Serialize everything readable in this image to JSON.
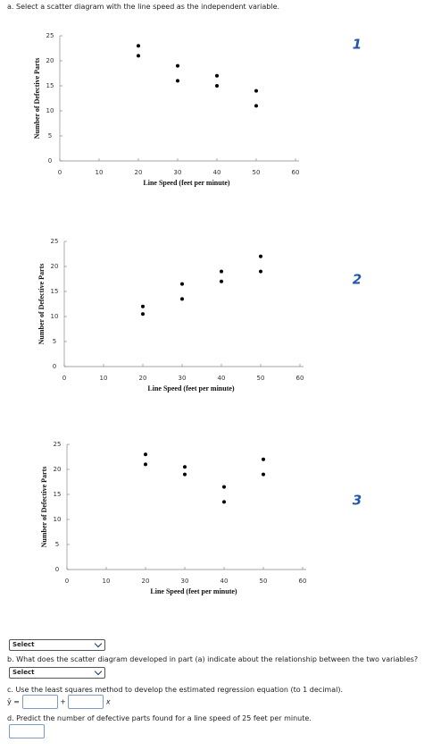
{
  "question_a": "a. Select a scatter diagram with the line speed as the independent variable.",
  "option_labels": [
    "1",
    "2",
    "3"
  ],
  "chart_data": [
    {
      "type": "scatter",
      "x_label": "Line Speed (feet per minute)",
      "y_label": "Number of Defective Parts",
      "color": "#000000",
      "x": [
        20,
        20,
        30,
        30,
        40,
        40,
        50,
        50
      ],
      "values": [
        23,
        21,
        19,
        16,
        17,
        15,
        14,
        11
      ],
      "xlim": [
        0,
        60
      ],
      "ylim": [
        0,
        25
      ],
      "xticks": [
        0,
        10,
        20,
        30,
        40,
        50,
        60
      ],
      "yticks": [
        0,
        5,
        10,
        15,
        20,
        25
      ]
    },
    {
      "type": "scatter",
      "x_label": "Line Speed (feet per minute)",
      "y_label": "Number of Defective Parts",
      "color": "#000000",
      "x": [
        20,
        20,
        30,
        30,
        40,
        40,
        50,
        50
      ],
      "values": [
        12,
        10.5,
        16.5,
        13.5,
        19,
        17,
        22,
        19
      ],
      "xlim": [
        0,
        60
      ],
      "ylim": [
        0,
        25
      ],
      "xticks": [
        0,
        10,
        20,
        30,
        40,
        50,
        60
      ],
      "yticks": [
        0,
        5,
        10,
        15,
        20,
        25
      ]
    },
    {
      "type": "scatter",
      "x_label": "Line Speed (feet per minute)",
      "y_label": "Number of Defective Parts",
      "color": "#000000",
      "x": [
        20,
        20,
        30,
        30,
        40,
        40,
        50,
        50
      ],
      "values": [
        23,
        21,
        20.5,
        19,
        16.5,
        13.5,
        22,
        19
      ],
      "xlim": [
        0,
        60
      ],
      "ylim": [
        0,
        25
      ],
      "xticks": [
        0,
        10,
        20,
        30,
        40,
        50,
        60
      ],
      "yticks": [
        0,
        5,
        10,
        15,
        20,
        25
      ]
    }
  ],
  "select_a": "Select",
  "question_b": "b. What does the scatter diagram developed in part (a) indicate about the relationship between the two variables?",
  "select_b": "Select",
  "question_c": "c. Use the least squares method to develop the estimated regression equation (to 1 decimal).",
  "equation": {
    "lhs": "ŷ =",
    "plus": "+",
    "var": "x"
  },
  "question_d": "d. Predict the number of defective parts found for a line speed of 25 feet per minute."
}
